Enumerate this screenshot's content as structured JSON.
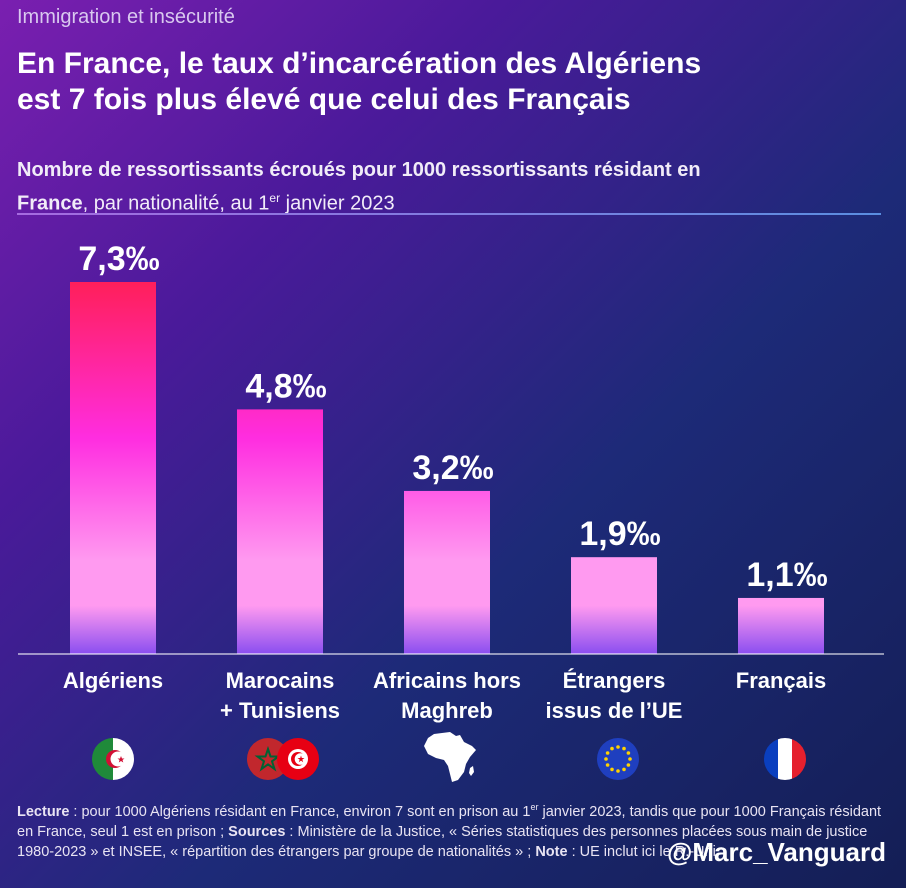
{
  "kicker": "Immigration et insécurité",
  "title_line1": "En France, le taux d’incarcération des Algériens",
  "title_line2": "est 7 fois plus élevé que celui des Français",
  "subtitle": {
    "part1": "Nombre de ressortissants écroués pour 1000 ressortissants résidant en",
    "bold2": "France",
    "part3": ", par nationalité, au 1",
    "sup": "er",
    "part4": " janvier 2023"
  },
  "chart_data": {
    "type": "bar",
    "title": "Nombre de ressortissants écroués pour 1000 ressortissants résidant en France, par nationalité, au 1er janvier 2023",
    "categories": [
      [
        "Algériens"
      ],
      [
        "Marocains",
        "+ Tunisiens"
      ],
      [
        "Africains hors",
        "Maghreb"
      ],
      [
        "Étrangers",
        "issus de l’UE"
      ],
      [
        "Français"
      ]
    ],
    "values": [
      7.3,
      4.8,
      3.2,
      1.9,
      1.1
    ],
    "value_labels": [
      "7,3‰",
      "4,8‰",
      "3,2‰",
      "1,9‰",
      "1,1‰"
    ],
    "unit": "‰",
    "ylim": [
      0,
      7.3
    ],
    "xlabel": "",
    "ylabel": "",
    "grid": false,
    "colors": {
      "bar_top": "#ff1f5a",
      "bar_mid": "#ff2de0",
      "bar_low": "#ff9af0",
      "bar_bottom": "#8a4ef0"
    }
  },
  "flags": [
    {
      "name": "Algeria",
      "icon": "algeria-flag-icon"
    },
    {
      "name": "Morocco + Tunisia",
      "icon": "morocco-tunisia-flags-icon"
    },
    {
      "name": "Africa",
      "icon": "africa-map-icon"
    },
    {
      "name": "European Union",
      "icon": "eu-flag-icon"
    },
    {
      "name": "France",
      "icon": "france-flag-icon"
    }
  ],
  "footer": {
    "lecture_label": "Lecture",
    "lecture_text1": " : pour 1000 Algériens résidant en France, environ 7 sont en prison au 1",
    "lecture_sup": "er",
    "lecture_text2": " janvier 2023, tandis que pour 1000 Français résidant en France, seul 1 est en prison ; ",
    "sources_label": "Sources",
    "sources_text": " : Ministère de la Justice, « Séries statistiques des personnes placées sous main de justice 1980-2023 » et INSEE, « répartition des étrangers par groupe de nationalités » ; ",
    "note_label": "Note",
    "note_text": " : UE inclut ici le R.-Uni"
  },
  "handle": "@Marc_Vanguard"
}
